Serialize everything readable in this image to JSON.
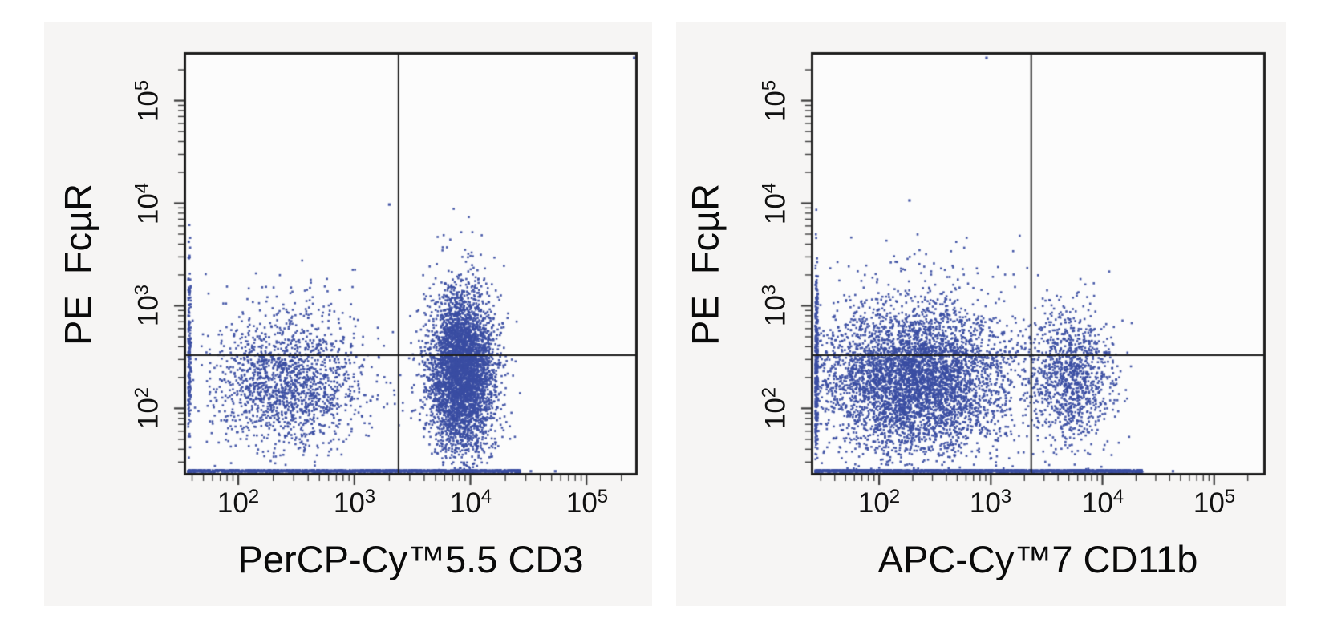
{
  "page": {
    "background": "#ffffff",
    "panel_background": "#f6f5f4",
    "plot_background": "#fcfcfc",
    "axis_color": "#1e1e1e",
    "tick_color": "#3c3c3c"
  },
  "chart_data": [
    {
      "type": "scatter",
      "panel": "left",
      "title": "",
      "xlabel": "PerCP-Cy™5.5 CD3",
      "ylabel": "PE  FcµR",
      "x_scale": "log",
      "y_scale": "log",
      "grid": false,
      "legend": "none",
      "x_log_range": [
        1.55,
        5.42
      ],
      "y_log_range": [
        1.37,
        5.45
      ],
      "x_ticks": [
        {
          "base": "10",
          "exp": "2",
          "value": 100
        },
        {
          "base": "10",
          "exp": "3",
          "value": 1000
        },
        {
          "base": "10",
          "exp": "4",
          "value": 10000
        },
        {
          "base": "10",
          "exp": "5",
          "value": 100000
        }
      ],
      "y_ticks": [
        {
          "base": "10",
          "exp": "5",
          "value": 100000
        },
        {
          "base": "10",
          "exp": "4",
          "value": 10000
        },
        {
          "base": "10",
          "exp": "3",
          "value": 1000
        },
        {
          "base": "10",
          "exp": "2",
          "value": 100
        }
      ],
      "quadrant_gate_x": 2400,
      "quadrant_gate_y": 330,
      "dot_color": "#3a4da2",
      "seed": 7,
      "clusters": [
        {
          "name": "CD3-negative FcµR-low",
          "n": 1700,
          "x_log_mean": 2.42,
          "x_log_sigma": 0.32,
          "y_log_mean": 2.28,
          "y_log_sigma": 0.32
        },
        {
          "name": "CD3-positive FcµR-positive",
          "n": 4600,
          "x_log_mean": 3.92,
          "x_log_sigma": 0.14,
          "y_log_mean": 2.38,
          "y_log_sigma": 0.38
        },
        {
          "name": "upper-halo",
          "n": 20,
          "x_log_mean": 2.4,
          "x_log_sigma": 0.35,
          "y_log_mean": 3.15,
          "y_log_sigma": 0.12
        }
      ],
      "baseline_pileup": {
        "n": 1500,
        "x_log_min": 1.55,
        "x_log_max": 4.42
      },
      "left_edge_pileup": {
        "n": 170,
        "y_log_mean": 2.55,
        "y_log_sigma": 0.45
      },
      "outliers": [
        [
          3.29,
          4.0
        ],
        [
          5.4,
          5.43
        ],
        [
          4.51,
          1.4
        ],
        [
          4.72,
          1.4
        ]
      ]
    },
    {
      "type": "scatter",
      "panel": "right",
      "title": "",
      "xlabel": "APC-Cy™7 CD11b",
      "ylabel": "PE  FcµR",
      "x_scale": "log",
      "y_scale": "log",
      "grid": false,
      "legend": "none",
      "x_log_range": [
        1.41,
        5.44
      ],
      "y_log_range": [
        1.37,
        5.45
      ],
      "x_ticks": [
        {
          "base": "10",
          "exp": "2",
          "value": 100
        },
        {
          "base": "10",
          "exp": "3",
          "value": 1000
        },
        {
          "base": "10",
          "exp": "4",
          "value": 10000
        },
        {
          "base": "10",
          "exp": "5",
          "value": 100000
        }
      ],
      "y_ticks": [
        {
          "base": "10",
          "exp": "5",
          "value": 100000
        },
        {
          "base": "10",
          "exp": "4",
          "value": 10000
        },
        {
          "base": "10",
          "exp": "3",
          "value": 1000
        },
        {
          "base": "10",
          "exp": "2",
          "value": 100
        }
      ],
      "quadrant_gate_x": 2300,
      "quadrant_gate_y": 330,
      "dot_color": "#3a4da2",
      "seed": 11,
      "clusters": [
        {
          "name": "CD11b-negative",
          "n": 5000,
          "x_log_mean": 2.32,
          "x_log_sigma": 0.42,
          "y_log_mean": 2.3,
          "y_log_sigma": 0.36
        },
        {
          "name": "CD11b-positive",
          "n": 1100,
          "x_log_mean": 3.72,
          "x_log_sigma": 0.19,
          "y_log_mean": 2.32,
          "y_log_sigma": 0.33
        },
        {
          "name": "upper-halo",
          "n": 30,
          "x_log_mean": 2.4,
          "x_log_sigma": 0.4,
          "y_log_mean": 3.45,
          "y_log_sigma": 0.15
        }
      ],
      "baseline_pileup": {
        "n": 2000,
        "x_log_min": 1.41,
        "x_log_max": 4.35
      },
      "left_edge_pileup": {
        "n": 280,
        "y_log_mean": 2.5,
        "y_log_sigma": 0.45
      },
      "outliers": [
        [
          2.26,
          4.04
        ],
        [
          2.95,
          5.43
        ],
        [
          4.62,
          1.4
        ]
      ]
    }
  ]
}
